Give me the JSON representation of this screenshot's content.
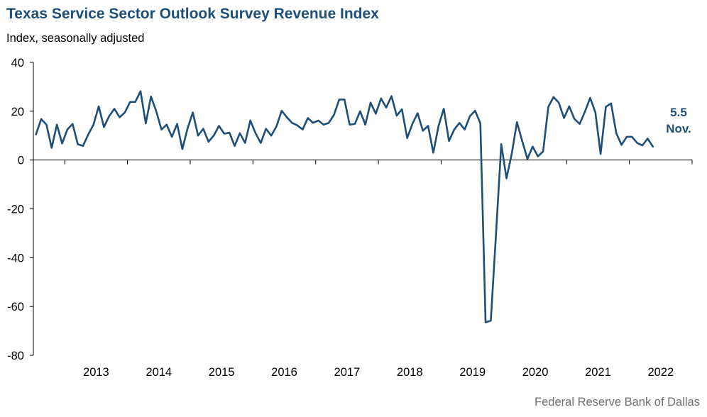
{
  "title": "Texas Service Sector Outlook Survey Revenue Index",
  "source": "Federal Reserve Bank of Dallas",
  "chart_data": {
    "type": "line",
    "title": "Texas Service Sector Outlook Survey Revenue Index",
    "ylabel": "Index, seasonally adjusted",
    "xlabel": "",
    "ylim": [
      -80,
      40
    ],
    "yticks": [
      40,
      20,
      0,
      -20,
      -40,
      -60,
      -80
    ],
    "x_categories": [
      "2013",
      "2014",
      "2015",
      "2016",
      "2017",
      "2018",
      "2019",
      "2020",
      "2021",
      "2022"
    ],
    "x_start": "Jul 2012",
    "x_end": "Nov 2022",
    "grid": false,
    "colors": {
      "line": "#1f4e79",
      "axis": "#000000",
      "title": "#1f4e79",
      "annotation": "#1f4e79"
    },
    "series": [
      {
        "name": "Revenue Index",
        "frequency": "monthly",
        "start": "Jul 2012",
        "values": [
          10.5,
          16.8,
          14.5,
          5.0,
          14.5,
          6.8,
          12.5,
          14.8,
          6.5,
          5.8,
          10.5,
          14.5,
          22.0,
          13.5,
          18.0,
          21.0,
          17.5,
          19.5,
          23.8,
          23.8,
          28.2,
          15.0,
          26.0,
          20.0,
          12.5,
          14.5,
          9.5,
          14.8,
          4.5,
          13.0,
          19.5,
          10.0,
          12.8,
          7.5,
          10.0,
          14.0,
          10.8,
          11.2,
          5.8,
          11.0,
          7.0,
          16.2,
          11.0,
          7.0,
          12.8,
          10.0,
          13.8,
          20.2,
          17.5,
          15.2,
          14.2,
          12.5,
          17.2,
          15.2,
          16.2,
          14.5,
          15.2,
          18.5,
          24.8,
          24.8,
          14.5,
          14.8,
          20.0,
          14.5,
          23.5,
          19.0,
          25.2,
          21.5,
          26.2,
          18.2,
          20.8,
          9.0,
          14.8,
          19.2,
          12.0,
          14.0,
          3.0,
          14.0,
          21.0,
          7.8,
          12.5,
          15.2,
          12.5,
          18.0,
          20.2,
          15.0,
          -66.5,
          -65.8,
          -30.0,
          6.5,
          -7.5,
          2.5,
          15.5,
          7.8,
          0.5,
          5.5,
          1.5,
          3.5,
          21.8,
          25.8,
          23.5,
          17.2,
          22.0,
          16.8,
          14.8,
          19.8,
          25.5,
          19.5,
          2.5,
          21.8,
          23.2,
          11.0,
          6.2,
          9.5,
          9.5,
          7.0,
          6.0,
          8.8,
          5.5
        ]
      }
    ],
    "annotations": [
      {
        "value": "5.5",
        "label": "Nov."
      }
    ]
  }
}
